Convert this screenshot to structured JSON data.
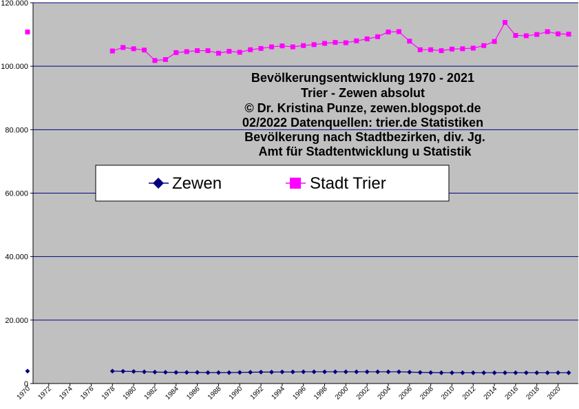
{
  "chart_data": {
    "type": "line",
    "title_lines": [
      "Bevölkerungsentwicklung 1970 - 2021",
      "Trier - Zewen absolut",
      "© Dr. Kristina Punze, zewen.blogspot.de",
      "02/2022 Datenquellen: trier.de Statistiken",
      "Bevölkerung nach Stadtbezirken, div. Jg.",
      "Amt für Stadtentwicklung u Statistik"
    ],
    "xlabel": "",
    "ylabel": "",
    "xlim": [
      1970,
      2021
    ],
    "ylim": [
      0,
      120000
    ],
    "y_ticks": [
      0,
      20000,
      40000,
      60000,
      80000,
      100000,
      120000
    ],
    "y_tick_labels": [
      "0",
      "20.000",
      "40.000",
      "60.000",
      "80.000",
      "100.000",
      "120.000"
    ],
    "x_ticks": [
      1970,
      1972,
      1974,
      1976,
      1978,
      1980,
      1982,
      1984,
      1986,
      1988,
      1990,
      1992,
      1994,
      1996,
      1998,
      2000,
      2002,
      2004,
      2006,
      2008,
      2010,
      2012,
      2014,
      2016,
      2018,
      2020
    ],
    "x_tick_labels": [
      "1970",
      "1972",
      "1974",
      "1976",
      "1978",
      "1980",
      "1982",
      "1984",
      "1986",
      "1988",
      "1990",
      "1992",
      "1994",
      "1996",
      "1998",
      "2000",
      "2002",
      "2004",
      "2006",
      "2008",
      "2010",
      "2012",
      "2014",
      "2016",
      "2018",
      "2020"
    ],
    "grid": true,
    "legend_position": "center-left",
    "background_color": "#c0c0c0",
    "series": [
      {
        "name": "Zewen",
        "color": "#000080",
        "marker": "diamond",
        "x": [
          1970,
          1978,
          1979,
          1980,
          1981,
          1982,
          1983,
          1984,
          1985,
          1986,
          1987,
          1988,
          1989,
          1990,
          1991,
          1992,
          1993,
          1994,
          1995,
          1996,
          1997,
          1998,
          1999,
          2000,
          2001,
          2002,
          2003,
          2004,
          2005,
          2006,
          2007,
          2008,
          2009,
          2010,
          2011,
          2012,
          2013,
          2014,
          2015,
          2016,
          2017,
          2018,
          2019,
          2020,
          2021
        ],
        "y": [
          3900,
          3900,
          3850,
          3800,
          3700,
          3600,
          3550,
          3500,
          3500,
          3500,
          3450,
          3450,
          3450,
          3500,
          3550,
          3600,
          3600,
          3650,
          3650,
          3700,
          3700,
          3700,
          3700,
          3700,
          3700,
          3700,
          3700,
          3700,
          3700,
          3600,
          3500,
          3450,
          3400,
          3400,
          3400,
          3400,
          3400,
          3400,
          3400,
          3400,
          3400,
          3400,
          3400,
          3400,
          3400
        ]
      },
      {
        "name": "Stadt Trier",
        "color": "#ff00ff",
        "marker": "square",
        "x": [
          1970,
          1978,
          1979,
          1980,
          1981,
          1982,
          1983,
          1984,
          1985,
          1986,
          1987,
          1988,
          1989,
          1990,
          1991,
          1992,
          1993,
          1994,
          1995,
          1996,
          1997,
          1998,
          1999,
          2000,
          2001,
          2002,
          2003,
          2004,
          2005,
          2006,
          2007,
          2008,
          2009,
          2010,
          2011,
          2012,
          2013,
          2014,
          2015,
          2016,
          2017,
          2018,
          2019,
          2020,
          2021
        ],
        "y": [
          110800,
          104800,
          105900,
          105500,
          105100,
          101800,
          102100,
          104300,
          104600,
          104900,
          104900,
          104100,
          104700,
          104400,
          105200,
          105600,
          106100,
          106400,
          106100,
          106500,
          106800,
          107200,
          107500,
          107400,
          108000,
          108600,
          109300,
          110800,
          110900,
          107900,
          105200,
          105200,
          104900,
          105400,
          105500,
          105700,
          106500,
          107800,
          113800,
          109700,
          109600,
          110000,
          110900,
          110200,
          110100
        ]
      }
    ]
  }
}
